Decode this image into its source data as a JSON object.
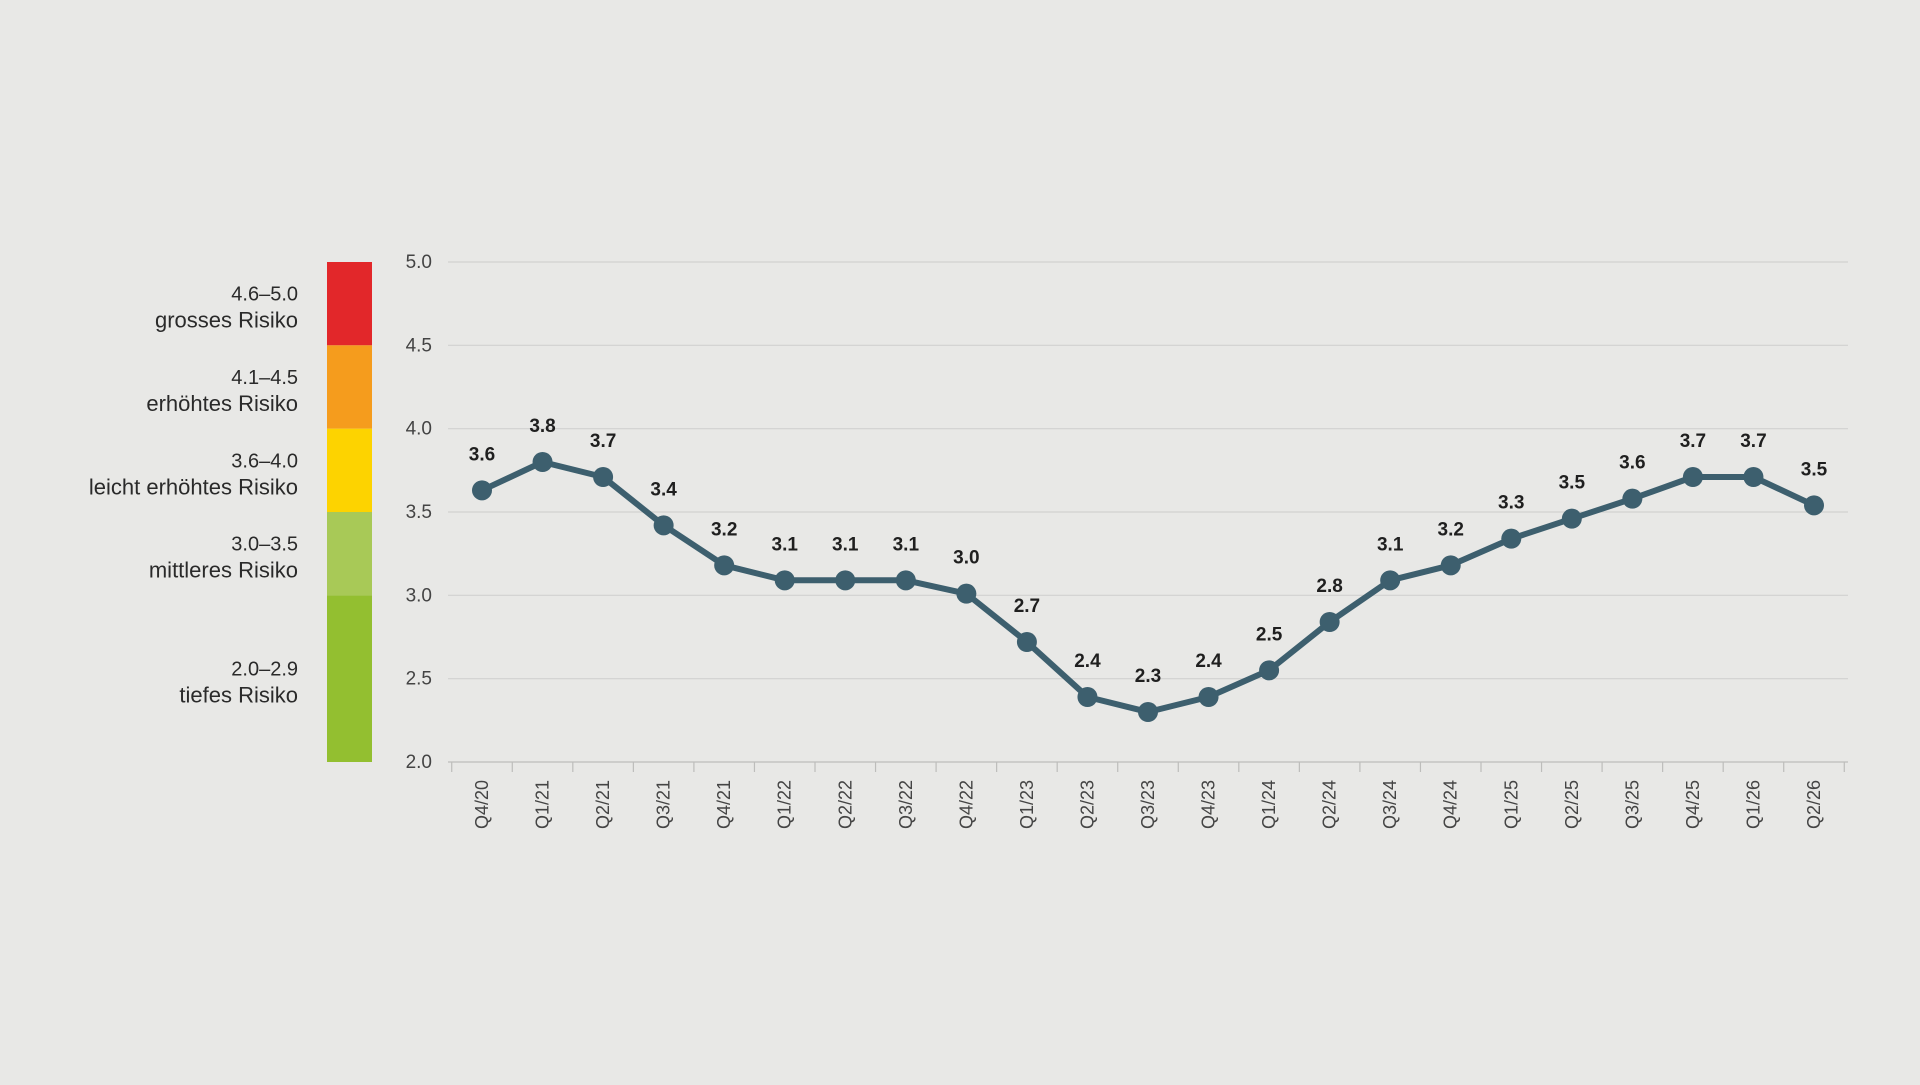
{
  "chart_data": {
    "type": "line",
    "categories": [
      "Q4/20",
      "Q1/21",
      "Q2/21",
      "Q3/21",
      "Q4/21",
      "Q1/22",
      "Q2/22",
      "Q3/22",
      "Q4/22",
      "Q1/23",
      "Q2/23",
      "Q3/23",
      "Q4/23",
      "Q1/24",
      "Q2/24",
      "Q3/24",
      "Q4/24",
      "Q1/25",
      "Q2/25",
      "Q3/25",
      "Q4/25",
      "Q1/26",
      "Q2/26"
    ],
    "series": [
      {
        "values": [
          3.63,
          3.8,
          3.71,
          3.42,
          3.18,
          3.09,
          3.09,
          3.09,
          3.01,
          2.72,
          2.39,
          2.3,
          2.39,
          2.55,
          2.84,
          3.09,
          3.18,
          3.34,
          3.46,
          3.58,
          3.71,
          3.71,
          3.54
        ],
        "labels": [
          "3.6",
          "3.8",
          "3.7",
          "3.4",
          "3.2",
          "3.1",
          "3.1",
          "3.1",
          "3.0",
          "2.7",
          "2.4",
          "2.3",
          "2.4",
          "2.5",
          "2.8",
          "3.1",
          "3.2",
          "3.3",
          "3.5",
          "3.6",
          "3.7",
          "3.7",
          "3.5"
        ],
        "color": "#3d5f6e"
      }
    ],
    "ylim": [
      2.0,
      5.0
    ],
    "yticks": [
      "2.0",
      "2.5",
      "3.0",
      "3.5",
      "4.0",
      "4.5",
      "5.0"
    ],
    "grid": true,
    "risk_scale": [
      {
        "from": 4.5,
        "to": 5.0,
        "range": "4.6–5.0",
        "name": "grosses Risiko",
        "color": "#e2272a"
      },
      {
        "from": 4.0,
        "to": 4.5,
        "range": "4.1–4.5",
        "name": "erhöhtes Risiko",
        "color": "#f59c1d"
      },
      {
        "from": 3.5,
        "to": 4.0,
        "range": "3.6–4.0",
        "name": "leicht erhöhtes Risiko",
        "color": "#fdd300"
      },
      {
        "from": 3.0,
        "to": 3.5,
        "range": "3.0–3.5",
        "name": "mittleres Risiko",
        "color": "#a8c957"
      },
      {
        "from": 2.0,
        "to": 3.0,
        "range": "2.0–2.9",
        "name": "tiefes Risiko",
        "color": "#93bf30"
      }
    ]
  }
}
